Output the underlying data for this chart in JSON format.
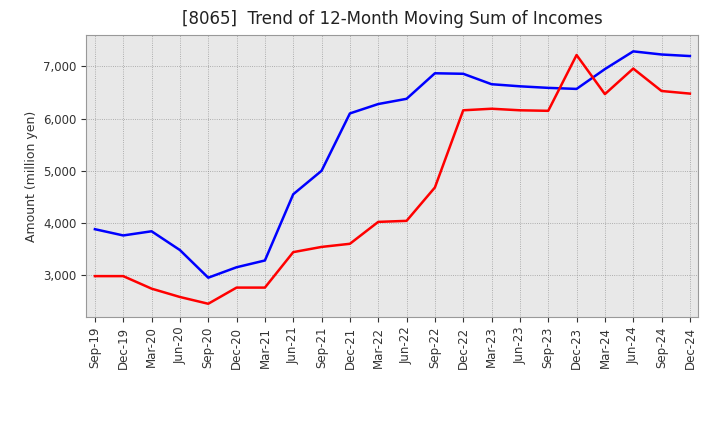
{
  "title": "[8065]  Trend of 12-Month Moving Sum of Incomes",
  "ylabel": "Amount (million yen)",
  "background_color": "#ffffff",
  "plot_bg_color": "#f0f0f0",
  "grid_color": "#888888",
  "x_labels": [
    "Sep-19",
    "Dec-19",
    "Mar-20",
    "Jun-20",
    "Sep-20",
    "Dec-20",
    "Mar-21",
    "Jun-21",
    "Sep-21",
    "Dec-21",
    "Mar-22",
    "Jun-22",
    "Sep-22",
    "Dec-22",
    "Mar-23",
    "Jun-23",
    "Sep-23",
    "Dec-23",
    "Mar-24",
    "Jun-24",
    "Sep-24",
    "Dec-24"
  ],
  "ordinary_income": [
    3880,
    3760,
    3840,
    3480,
    2950,
    3150,
    3280,
    4550,
    5000,
    6100,
    6280,
    6380,
    6870,
    6860,
    6660,
    6620,
    6590,
    6570,
    6950,
    7290,
    7230,
    7200
  ],
  "net_income": [
    2980,
    2980,
    2740,
    2580,
    2450,
    2760,
    2760,
    3440,
    3540,
    3600,
    4020,
    4040,
    4680,
    6160,
    6190,
    6160,
    6150,
    7220,
    6470,
    6960,
    6530,
    6480
  ],
  "ordinary_color": "#0000ff",
  "net_color": "#ff0000",
  "ylim_min": 2200,
  "ylim_max": 7600,
  "yticks": [
    3000,
    4000,
    5000,
    6000,
    7000
  ],
  "title_fontsize": 12,
  "axis_fontsize": 9,
  "tick_fontsize": 8.5
}
